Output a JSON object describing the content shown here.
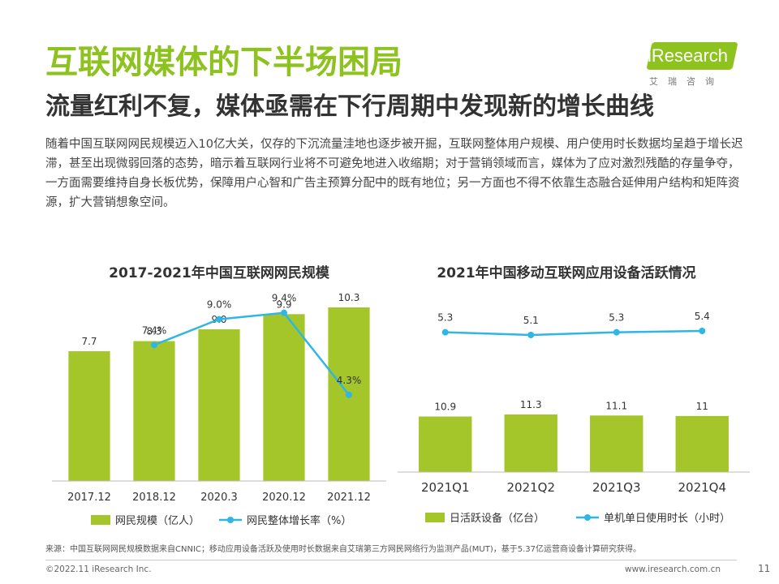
{
  "header": {
    "title": "互联网媒体的下半场困局",
    "subtitle": "流量红利不复，媒体亟需在下行周期中发现新的增长曲线",
    "body": "随着中国互联网网民规模迈入10亿大关，仅存的下沉流量洼地也逐步被开掘，互联网整体用户规模、用户使用时长数据均呈趋于增长迟滞，甚至出现微弱回落的态势，暗示着互联网行业将不可避免地进入收缩期；对于营销领域而言，媒体为了应对激烈残酷的存量争夺，一方面需要维持自身长板优势，保障用户心智和广告主预算分配中的既有地位；另一方面也不得不依靠生态融合延伸用户结构和矩阵资源，扩大营销想象空间。"
  },
  "logo": {
    "word": "iResearch",
    "cn": "艾瑞咨询"
  },
  "colors": {
    "accent": "#8dc21f",
    "bar": "#a5c62a",
    "line": "#2fb6e4"
  },
  "chart_data": [
    {
      "type": "bar",
      "title": "2017-2021年中国互联网网民规模",
      "categories": [
        "2017.12",
        "2018.12",
        "2020.3",
        "2020.12",
        "2021.12"
      ],
      "series": [
        {
          "name": "网民规模（亿人）",
          "type": "bar",
          "values": [
            7.7,
            8.3,
            9.0,
            9.9,
            10.3
          ],
          "labels": [
            "7.7",
            "8.3",
            "9.0",
            "9.9",
            "10.3"
          ]
        },
        {
          "name": "网民整体增长率（%）",
          "type": "line",
          "values": [
            null,
            7.4,
            9.0,
            9.4,
            4.3
          ],
          "labels": [
            "",
            "7.4%",
            "9.0%",
            "9.4%",
            "4.3%"
          ]
        }
      ],
      "legend": "bottom"
    },
    {
      "type": "bar",
      "title": "2021年中国移动互联网应用设备活跃情况",
      "categories": [
        "2021Q1",
        "2021Q2",
        "2021Q3",
        "2021Q4"
      ],
      "series": [
        {
          "name": "日活跃设备（亿台）",
          "type": "bar",
          "values": [
            10.9,
            11.3,
            11.1,
            11
          ],
          "labels": [
            "10.9",
            "11.3",
            "11.1",
            "11"
          ]
        },
        {
          "name": "单机单日使用时长（小时）",
          "type": "line",
          "values": [
            5.3,
            5.1,
            5.3,
            5.4
          ],
          "labels": [
            "5.3",
            "5.1",
            "5.3",
            "5.4"
          ]
        }
      ],
      "legend": "bottom"
    }
  ],
  "footer": {
    "source": "来源：中国互联网网民规模数据来自CNNIC；移动应用设备活跃及使用时长数据来自艾瑞第三方网民网络行为监测产品(MUT)，基于5.37亿运营商设备计算研究获得。",
    "copyright": "©2022.11 iResearch Inc.",
    "website": "www.iresearch.com.cn",
    "page": "11"
  }
}
